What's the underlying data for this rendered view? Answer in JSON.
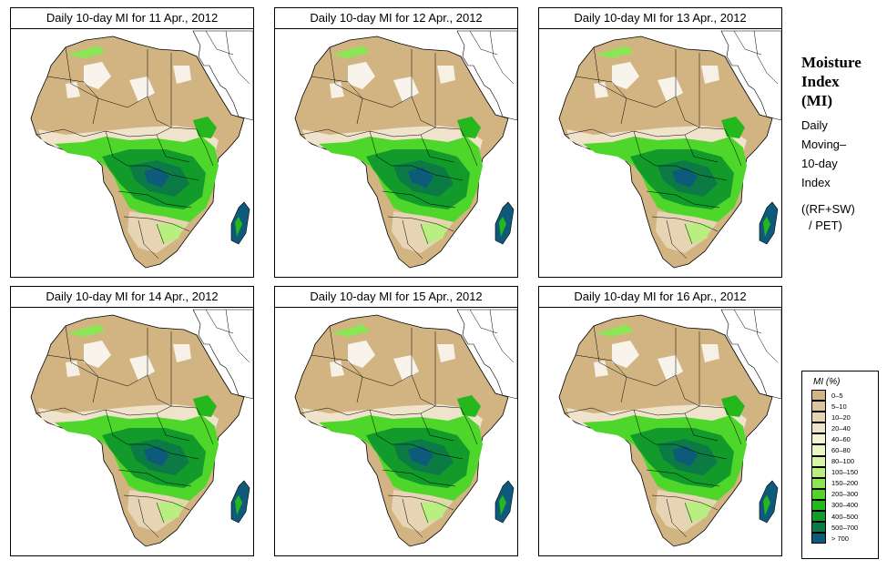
{
  "panels": [
    {
      "title": "Daily 10-day MI for  11 Apr., 2012"
    },
    {
      "title": "Daily 10-day MI for  12 Apr., 2012"
    },
    {
      "title": "Daily 10-day MI for  13 Apr., 2012"
    },
    {
      "title": "Daily 10-day MI for  14 Apr., 2012"
    },
    {
      "title": "Daily 10-day MI for  15 Apr., 2012"
    },
    {
      "title": "Daily 10-day MI for  16 Apr., 2012"
    }
  ],
  "sidebar": {
    "heading_line1": "Moisture",
    "heading_line2": "Index",
    "heading_line3": "(MI)",
    "desc_line1": "Daily",
    "desc_line2": "Moving–",
    "desc_line3": "10-day",
    "desc_line4": "Index",
    "formula_line1": "((RF+SW)",
    "formula_line2": "/ PET)"
  },
  "legend": {
    "title": "MI (%)",
    "items": [
      {
        "label": "0–5",
        "color": "#d2b483"
      },
      {
        "label": "5–10",
        "color": "#dcc49c"
      },
      {
        "label": "10–20",
        "color": "#e6d4b5"
      },
      {
        "label": "20–40",
        "color": "#efe3cc"
      },
      {
        "label": "40–60",
        "color": "#f5f5d5"
      },
      {
        "label": "60–80",
        "color": "#eaf7c5"
      },
      {
        "label": "80–100",
        "color": "#d6f5a8"
      },
      {
        "label": "100–150",
        "color": "#b9ee80"
      },
      {
        "label": "150–200",
        "color": "#8be655"
      },
      {
        "label": "200–300",
        "color": "#4fd62a"
      },
      {
        "label": "300–400",
        "color": "#24b81c"
      },
      {
        "label": "400–500",
        "color": "#129a2a"
      },
      {
        "label": "500–700",
        "color": "#0c7a45"
      },
      {
        "label": "> 700",
        "color": "#0e5a7a"
      }
    ]
  }
}
